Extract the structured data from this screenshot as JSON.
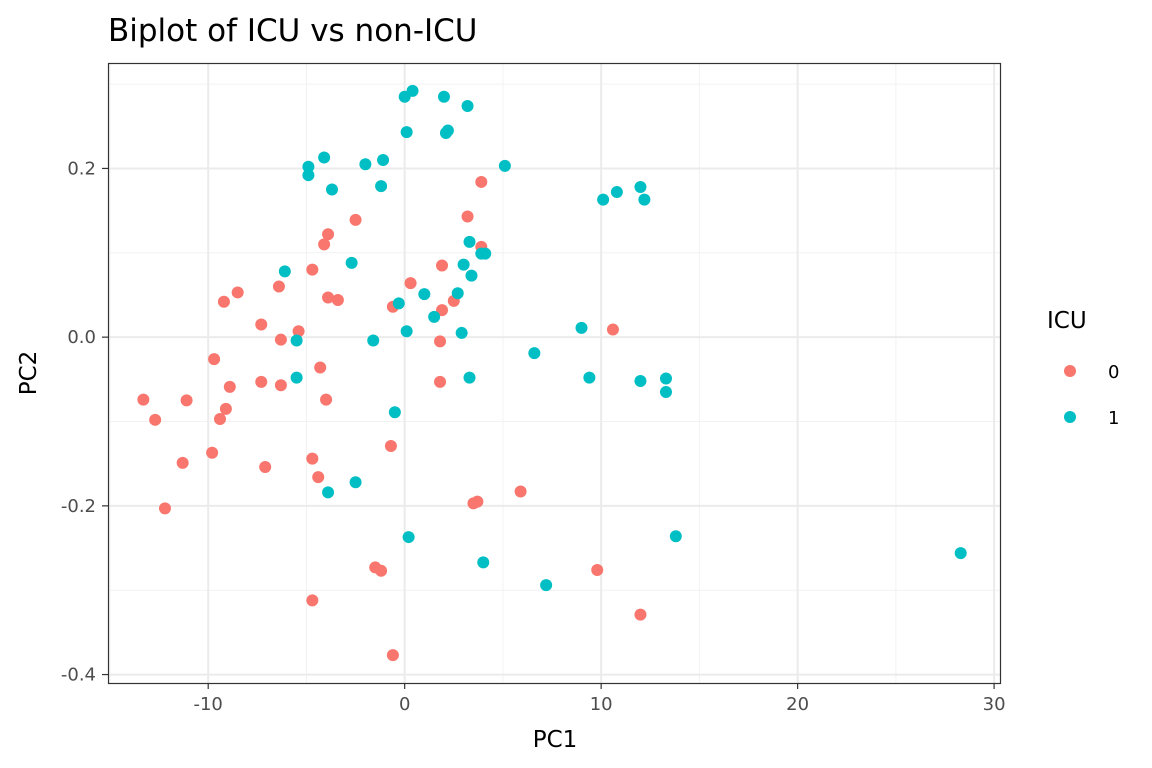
{
  "chart_data": {
    "type": "scatter",
    "title": "Biplot of ICU vs non-ICU",
    "xlabel": "PC1",
    "ylabel": "PC2",
    "xlim": [
      -15.1,
      30.3
    ],
    "ylim": [
      -0.41,
      0.325
    ],
    "x_ticks": [
      -10,
      0,
      10,
      20,
      30
    ],
    "x_tick_labels": [
      "-10",
      "0",
      "10",
      "20",
      "30"
    ],
    "y_ticks": [
      -0.4,
      -0.2,
      0.0,
      0.2
    ],
    "y_tick_labels": [
      "-0.4",
      "-0.2",
      "0.0",
      "0.2"
    ],
    "grid": true,
    "legend": {
      "title": "ICU",
      "placement": "right",
      "entries": [
        {
          "label": "0",
          "color": "#F8766D"
        },
        {
          "label": "1",
          "color": "#00BFC4"
        }
      ]
    },
    "series": [
      {
        "name": "0",
        "color": "#F8766D",
        "points": [
          [
            -13.3,
            -0.074
          ],
          [
            -12.7,
            -0.098
          ],
          [
            -12.2,
            -0.203
          ],
          [
            -11.3,
            -0.149
          ],
          [
            -11.1,
            -0.075
          ],
          [
            -9.8,
            -0.137
          ],
          [
            -9.7,
            -0.026
          ],
          [
            -9.4,
            -0.097
          ],
          [
            -9.2,
            0.042
          ],
          [
            -9.1,
            -0.085
          ],
          [
            -8.9,
            -0.059
          ],
          [
            -8.5,
            0.053
          ],
          [
            -7.3,
            -0.053
          ],
          [
            -7.3,
            0.015
          ],
          [
            -7.1,
            -0.154
          ],
          [
            -6.3,
            -0.003
          ],
          [
            -6.3,
            -0.057
          ],
          [
            -6.4,
            0.06
          ],
          [
            -5.4,
            0.007
          ],
          [
            -4.7,
            0.08
          ],
          [
            -4.7,
            -0.144
          ],
          [
            -4.4,
            -0.166
          ],
          [
            -4.3,
            -0.036
          ],
          [
            -4.1,
            0.11
          ],
          [
            -4.0,
            -0.074
          ],
          [
            -3.9,
            0.047
          ],
          [
            -3.9,
            0.122
          ],
          [
            -3.4,
            0.044
          ],
          [
            -2.5,
            0.139
          ],
          [
            -1.5,
            -0.273
          ],
          [
            -1.2,
            -0.277
          ],
          [
            -0.7,
            -0.129
          ],
          [
            -0.6,
            0.036
          ],
          [
            -0.6,
            -0.377
          ],
          [
            0.3,
            0.064
          ],
          [
            1.8,
            -0.005
          ],
          [
            1.8,
            -0.053
          ],
          [
            1.9,
            0.085
          ],
          [
            1.9,
            0.032
          ],
          [
            2.5,
            0.043
          ],
          [
            3.2,
            0.143
          ],
          [
            3.5,
            -0.197
          ],
          [
            3.7,
            -0.195
          ],
          [
            3.9,
            0.184
          ],
          [
            3.9,
            0.107
          ],
          [
            5.9,
            -0.183
          ],
          [
            9.8,
            -0.276
          ],
          [
            10.6,
            0.009
          ],
          [
            12.0,
            -0.329
          ],
          [
            -4.7,
            -0.312
          ]
        ]
      },
      {
        "name": "1",
        "color": "#00BFC4",
        "points": [
          [
            -6.1,
            0.078
          ],
          [
            -5.5,
            -0.004
          ],
          [
            -5.5,
            -0.048
          ],
          [
            -4.9,
            0.202
          ],
          [
            -4.9,
            0.192
          ],
          [
            -4.1,
            0.213
          ],
          [
            -3.9,
            -0.184
          ],
          [
            -3.7,
            0.175
          ],
          [
            -2.7,
            0.088
          ],
          [
            -2.5,
            -0.172
          ],
          [
            -2.0,
            0.205
          ],
          [
            -1.6,
            -0.004
          ],
          [
            -1.2,
            0.179
          ],
          [
            -1.1,
            0.21
          ],
          [
            -0.5,
            -0.089
          ],
          [
            -0.3,
            0.04
          ],
          [
            0.0,
            0.285
          ],
          [
            0.1,
            0.243
          ],
          [
            0.1,
            0.007
          ],
          [
            0.2,
            -0.237
          ],
          [
            0.4,
            0.292
          ],
          [
            1.0,
            0.051
          ],
          [
            1.5,
            0.024
          ],
          [
            2.0,
            0.285
          ],
          [
            2.1,
            0.242
          ],
          [
            2.2,
            0.245
          ],
          [
            2.7,
            0.052
          ],
          [
            2.9,
            0.005
          ],
          [
            3.0,
            0.086
          ],
          [
            3.2,
            0.274
          ],
          [
            3.3,
            0.113
          ],
          [
            3.3,
            -0.048
          ],
          [
            3.4,
            0.073
          ],
          [
            3.9,
            0.099
          ],
          [
            4.0,
            -0.267
          ],
          [
            4.1,
            0.099
          ],
          [
            5.1,
            0.203
          ],
          [
            6.6,
            -0.019
          ],
          [
            7.2,
            -0.294
          ],
          [
            9.0,
            0.011
          ],
          [
            9.4,
            -0.048
          ],
          [
            10.1,
            0.163
          ],
          [
            10.8,
            0.172
          ],
          [
            12.0,
            -0.052
          ],
          [
            12.0,
            0.178
          ],
          [
            12.2,
            0.163
          ],
          [
            13.3,
            -0.049
          ],
          [
            13.3,
            -0.065
          ],
          [
            13.8,
            -0.236
          ],
          [
            28.3,
            -0.256
          ]
        ]
      }
    ]
  }
}
